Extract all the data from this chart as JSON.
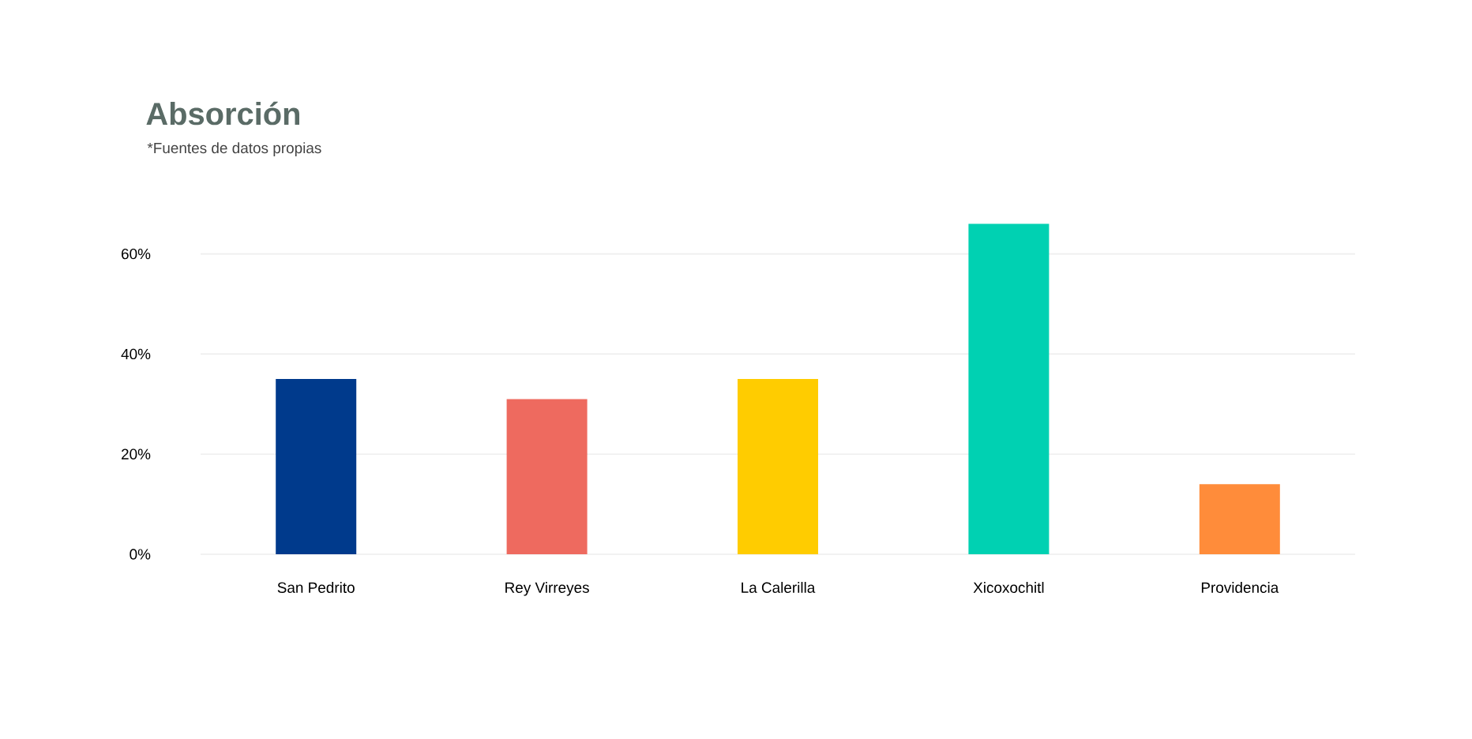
{
  "chart_data": {
    "type": "bar",
    "title": "Absorción",
    "subtitle": "*Fuentes de datos propias",
    "categories": [
      "San Pedrito",
      "Rey Virreyes",
      "La Calerilla",
      "Xicoxochitl",
      "Providencia"
    ],
    "values": [
      35,
      31,
      35,
      66,
      14
    ],
    "colors": [
      "#003a8c",
      "#ee6a5f",
      "#ffcc00",
      "#00d1b2",
      "#ff8c3a"
    ],
    "ylim": [
      0,
      66
    ],
    "yticks": [
      {
        "value": 0,
        "label": "0%"
      },
      {
        "value": 20,
        "label": "20%"
      },
      {
        "value": 40,
        "label": "40%"
      },
      {
        "value": 60,
        "label": "60%"
      }
    ],
    "grid": "y"
  }
}
